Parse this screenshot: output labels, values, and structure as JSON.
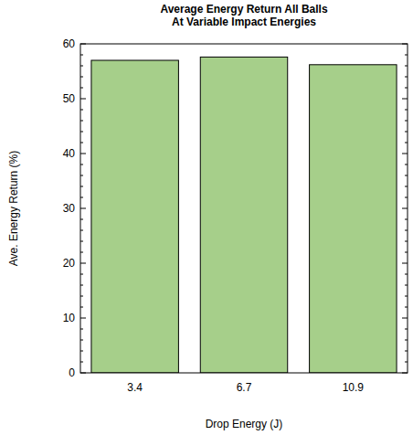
{
  "chart_data": {
    "type": "bar",
    "title": "Average Energy Return All Balls",
    "subtitle": "At Variable Impact Energies",
    "x_label": "Drop Energy (J)",
    "y_label": "Ave. Energy Return (%)",
    "categories": [
      "3.4",
      "6.7",
      "10.9"
    ],
    "values": [
      57.0,
      57.6,
      56.2
    ],
    "color": "#a6cf8a",
    "ylim": [
      0,
      60
    ],
    "yticks": [
      0,
      10,
      20,
      30,
      40,
      50,
      60
    ],
    "grid": false
  }
}
